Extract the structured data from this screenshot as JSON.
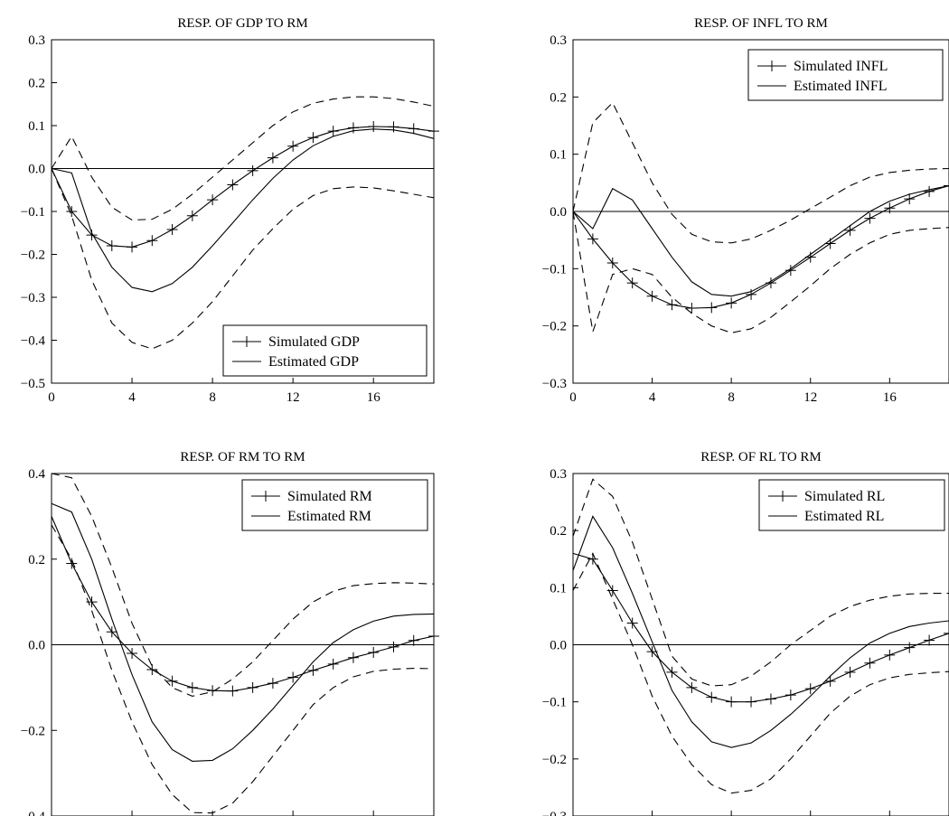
{
  "chart_data": [
    {
      "type": "line",
      "title": "RESP. OF GDP TO RM",
      "xlim": [
        0,
        19
      ],
      "ylim": [
        -0.5,
        0.3
      ],
      "xticks": [
        0,
        4,
        8,
        12,
        16
      ],
      "yticks": [
        -0.5,
        -0.4,
        -0.3,
        -0.2,
        -0.1,
        0.0,
        0.1,
        0.2,
        0.3
      ],
      "ytick_labels": [
        "−0.5",
        "−0.4",
        "−0.3",
        "−0.2",
        "−0.1",
        "0.0",
        "0.1",
        "0.2",
        "0.3"
      ],
      "legend_position": "bottom-right",
      "zero_line": true,
      "x": [
        0,
        1,
        2,
        3,
        4,
        5,
        6,
        7,
        8,
        9,
        10,
        11,
        12,
        13,
        14,
        15,
        16,
        17,
        18,
        19
      ],
      "series": [
        {
          "name": "Simulated GDP",
          "style": "solid-plus",
          "values": [
            0.0,
            -0.1,
            -0.155,
            -0.18,
            -0.183,
            -0.168,
            -0.142,
            -0.11,
            -0.073,
            -0.038,
            -0.005,
            0.025,
            0.052,
            0.072,
            0.087,
            0.095,
            0.098,
            0.097,
            0.093,
            0.087
          ]
        },
        {
          "name": "Estimated GDP",
          "style": "solid",
          "values": [
            0.0,
            -0.01,
            -0.15,
            -0.23,
            -0.277,
            -0.287,
            -0.268,
            -0.23,
            -0.18,
            -0.127,
            -0.073,
            -0.023,
            0.02,
            0.053,
            0.075,
            0.088,
            0.092,
            0.09,
            0.082,
            0.07
          ]
        },
        {
          "style": "dashed",
          "values": [
            0.0,
            0.075,
            -0.02,
            -0.09,
            -0.12,
            -0.118,
            -0.095,
            -0.06,
            -0.02,
            0.02,
            0.06,
            0.1,
            0.132,
            0.152,
            0.162,
            0.167,
            0.167,
            0.163,
            0.155,
            0.145
          ]
        },
        {
          "style": "dashed",
          "values": [
            0.0,
            -0.11,
            -0.26,
            -0.36,
            -0.405,
            -0.42,
            -0.4,
            -0.36,
            -0.31,
            -0.25,
            -0.19,
            -0.14,
            -0.095,
            -0.063,
            -0.047,
            -0.043,
            -0.045,
            -0.052,
            -0.06,
            -0.068
          ]
        }
      ]
    },
    {
      "type": "line",
      "title": "RESP. OF INFL TO RM",
      "xlim": [
        0,
        19
      ],
      "ylim": [
        -0.3,
        0.3
      ],
      "xticks": [
        0,
        4,
        8,
        12,
        16
      ],
      "yticks": [
        -0.3,
        -0.2,
        -0.1,
        0.0,
        0.1,
        0.2,
        0.3
      ],
      "ytick_labels": [
        "−0.3",
        "−0.2",
        "−0.1",
        "0.0",
        "0.1",
        "0.2",
        "0.3"
      ],
      "legend_position": "top-right",
      "zero_line": true,
      "x": [
        0,
        1,
        2,
        3,
        4,
        5,
        6,
        7,
        8,
        9,
        10,
        11,
        12,
        13,
        14,
        15,
        16,
        17,
        18,
        19
      ],
      "series": [
        {
          "name": "Simulated INFL",
          "style": "solid-plus",
          "values": [
            0.0,
            -0.048,
            -0.09,
            -0.125,
            -0.148,
            -0.163,
            -0.169,
            -0.168,
            -0.16,
            -0.145,
            -0.125,
            -0.103,
            -0.08,
            -0.056,
            -0.033,
            -0.012,
            0.006,
            0.022,
            0.035,
            0.045
          ]
        },
        {
          "name": "Estimated INFL",
          "style": "solid",
          "values": [
            0.0,
            -0.03,
            0.04,
            0.02,
            -0.03,
            -0.08,
            -0.123,
            -0.145,
            -0.148,
            -0.14,
            -0.122,
            -0.1,
            -0.075,
            -0.05,
            -0.025,
            0.0,
            0.018,
            0.03,
            0.038,
            0.045
          ]
        },
        {
          "style": "dashed",
          "values": [
            0.0,
            0.155,
            0.19,
            0.12,
            0.05,
            -0.005,
            -0.04,
            -0.053,
            -0.055,
            -0.048,
            -0.033,
            -0.015,
            0.005,
            0.025,
            0.045,
            0.06,
            0.068,
            0.072,
            0.074,
            0.075
          ]
        },
        {
          "style": "dashed",
          "values": [
            0.0,
            -0.21,
            -0.11,
            -0.1,
            -0.11,
            -0.15,
            -0.178,
            -0.2,
            -0.212,
            -0.205,
            -0.185,
            -0.158,
            -0.13,
            -0.1,
            -0.075,
            -0.055,
            -0.04,
            -0.033,
            -0.03,
            -0.028
          ]
        }
      ]
    },
    {
      "type": "line",
      "title": "RESP. OF RM TO RM",
      "xlim": [
        0,
        19
      ],
      "ylim": [
        -0.4,
        0.4
      ],
      "xticks": [
        0,
        4,
        8,
        12,
        16
      ],
      "yticks": [
        -0.4,
        -0.2,
        0.0,
        0.2,
        0.4
      ],
      "ytick_labels": [
        "-0.4",
        "−0.2",
        "0.0",
        "0.2",
        "0.4"
      ],
      "legend_position": "top-right",
      "zero_line": true,
      "x": [
        0,
        1,
        2,
        3,
        4,
        5,
        6,
        7,
        8,
        9,
        10,
        11,
        12,
        13,
        14,
        15,
        16,
        17,
        18,
        19
      ],
      "series": [
        {
          "name": "Simulated RM",
          "style": "solid-plus",
          "values": [
            0.3,
            0.19,
            0.1,
            0.03,
            -0.02,
            -0.058,
            -0.085,
            -0.1,
            -0.107,
            -0.108,
            -0.1,
            -0.09,
            -0.076,
            -0.06,
            -0.045,
            -0.03,
            -0.018,
            -0.005,
            0.01,
            0.02
          ]
        },
        {
          "name": "Estimated RM",
          "style": "solid",
          "values": [
            0.33,
            0.31,
            0.2,
            0.06,
            -0.07,
            -0.18,
            -0.245,
            -0.272,
            -0.27,
            -0.243,
            -0.2,
            -0.15,
            -0.095,
            -0.04,
            0.005,
            0.035,
            0.055,
            0.067,
            0.071,
            0.072
          ]
        },
        {
          "style": "dashed",
          "values": [
            0.4,
            0.39,
            0.3,
            0.18,
            0.05,
            -0.05,
            -0.1,
            -0.12,
            -0.11,
            -0.08,
            -0.04,
            0.01,
            0.06,
            0.1,
            0.125,
            0.138,
            0.143,
            0.145,
            0.144,
            0.142
          ]
        },
        {
          "style": "dashed",
          "values": [
            0.28,
            0.2,
            0.08,
            -0.06,
            -0.18,
            -0.28,
            -0.35,
            -0.392,
            -0.393,
            -0.37,
            -0.32,
            -0.26,
            -0.2,
            -0.14,
            -0.1,
            -0.075,
            -0.062,
            -0.057,
            -0.055,
            -0.056
          ]
        }
      ]
    },
    {
      "type": "line",
      "title": "RESP. OF RL TO RM",
      "xlim": [
        0,
        19
      ],
      "ylim": [
        -0.3,
        0.3
      ],
      "xticks": [
        0,
        4,
        8,
        12,
        16
      ],
      "yticks": [
        -0.3,
        -0.2,
        -0.1,
        0.0,
        0.1,
        0.2,
        0.3
      ],
      "ytick_labels": [
        "−0.3",
        "−0.2",
        "−0.1",
        "0.0",
        "0.1",
        "0.2",
        "0.3"
      ],
      "legend_position": "top-right",
      "zero_line": true,
      "x": [
        0,
        1,
        2,
        3,
        4,
        5,
        6,
        7,
        8,
        9,
        10,
        11,
        12,
        13,
        14,
        15,
        16,
        17,
        18,
        19
      ],
      "series": [
        {
          "name": "Simulated RL",
          "style": "solid-plus",
          "values": [
            0.16,
            0.15,
            0.095,
            0.038,
            -0.012,
            -0.048,
            -0.075,
            -0.092,
            -0.1,
            -0.1,
            -0.095,
            -0.088,
            -0.077,
            -0.064,
            -0.048,
            -0.032,
            -0.018,
            -0.005,
            0.008,
            0.02
          ]
        },
        {
          "name": "Estimated RL",
          "style": "solid",
          "values": [
            0.13,
            0.225,
            0.17,
            0.09,
            0.005,
            -0.08,
            -0.135,
            -0.17,
            -0.18,
            -0.172,
            -0.15,
            -0.122,
            -0.09,
            -0.055,
            -0.023,
            0.003,
            0.02,
            0.032,
            0.038,
            0.042
          ]
        },
        {
          "style": "dashed",
          "values": [
            0.19,
            0.29,
            0.26,
            0.18,
            0.08,
            -0.02,
            -0.06,
            -0.072,
            -0.07,
            -0.055,
            -0.03,
            0.0,
            0.025,
            0.05,
            0.067,
            0.078,
            0.085,
            0.089,
            0.09,
            0.09
          ]
        },
        {
          "style": "dashed",
          "values": [
            0.095,
            0.16,
            0.08,
            0.0,
            -0.09,
            -0.16,
            -0.21,
            -0.245,
            -0.26,
            -0.255,
            -0.235,
            -0.2,
            -0.16,
            -0.12,
            -0.09,
            -0.07,
            -0.058,
            -0.052,
            -0.049,
            -0.047
          ]
        }
      ]
    }
  ]
}
